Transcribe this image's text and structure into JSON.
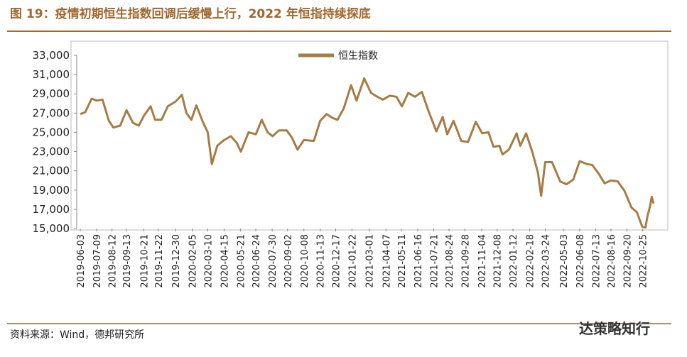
{
  "chart_data": {
    "type": "line",
    "title": "图 19：疫情初期恒生指数回调后缓慢上行，2022 年恒指持续探底",
    "source": "资料来源：Wind，德邦研究所",
    "watermark": "达策略知行",
    "x": [
      "2019-06-03",
      "2019-06-14",
      "2019-06-28",
      "2019-07-09",
      "2019-07-22",
      "2019-08-05",
      "2019-08-15",
      "2019-08-30",
      "2019-09-13",
      "2019-09-27",
      "2019-10-10",
      "2019-10-21",
      "2019-11-05",
      "2019-11-15",
      "2019-11-29",
      "2019-12-13",
      "2019-12-30",
      "2020-01-13",
      "2020-01-23",
      "2020-02-03",
      "2020-02-14",
      "2020-02-28",
      "2020-03-10",
      "2020-03-19",
      "2020-03-31",
      "2020-04-15",
      "2020-04-30",
      "2020-05-13",
      "2020-05-22",
      "2020-06-08",
      "2020-06-24",
      "2020-07-07",
      "2020-07-20",
      "2020-07-31",
      "2020-08-14",
      "2020-08-31",
      "2020-09-11",
      "2020-09-24",
      "2020-10-08",
      "2020-10-30",
      "2020-11-13",
      "2020-11-27",
      "2020-12-10",
      "2020-12-21",
      "2021-01-04",
      "2021-01-20",
      "2021-02-01",
      "2021-02-18",
      "2021-03-05",
      "2021-03-15",
      "2021-03-31",
      "2021-04-15",
      "2021-04-30",
      "2021-05-12",
      "2021-05-26",
      "2021-06-10",
      "2021-06-25",
      "2021-07-09",
      "2021-07-27",
      "2021-08-10",
      "2021-08-20",
      "2021-09-03",
      "2021-09-20",
      "2021-10-05",
      "2021-10-22",
      "2021-11-05",
      "2021-11-19",
      "2021-11-30",
      "2021-12-13",
      "2021-12-20",
      "2022-01-03",
      "2022-01-20",
      "2022-01-28",
      "2022-02-10",
      "2022-02-24",
      "2022-03-08",
      "2022-03-15",
      "2022-03-24",
      "2022-04-08",
      "2022-04-26",
      "2022-05-10",
      "2022-05-25",
      "2022-06-08",
      "2022-06-24",
      "2022-07-06",
      "2022-07-20",
      "2022-08-02",
      "2022-08-16",
      "2022-08-31",
      "2022-09-15",
      "2022-09-30",
      "2022-10-12",
      "2022-10-24",
      "2022-10-31",
      "2022-11-04",
      "2022-11-10",
      "2022-11-14",
      "2022-11-18"
    ],
    "series": [
      {
        "name": "恒生指数",
        "color": "#a67c45",
        "values": [
          26900,
          27100,
          28500,
          28300,
          28400,
          26200,
          25500,
          25700,
          27300,
          26000,
          25700,
          26700,
          27700,
          26300,
          26300,
          27700,
          28200,
          28900,
          27000,
          26300,
          27800,
          26100,
          25000,
          21700,
          23600,
          24200,
          24600,
          23900,
          23000,
          25000,
          24800,
          26300,
          25000,
          24600,
          25200,
          25200,
          24500,
          23200,
          24200,
          24100,
          26200,
          26900,
          26500,
          26300,
          27500,
          29900,
          28300,
          30600,
          29100,
          28800,
          28400,
          28800,
          28700,
          27700,
          29100,
          28700,
          29200,
          27300,
          25100,
          26600,
          24800,
          26200,
          24100,
          24000,
          26100,
          24900,
          25000,
          23500,
          23600,
          22700,
          23200,
          24900,
          23600,
          24900,
          22900,
          20800,
          18400,
          21900,
          21900,
          19900,
          19600,
          20100,
          22000,
          21700,
          21600,
          20700,
          19700,
          20000,
          19900,
          18900,
          17200,
          16700,
          15200,
          15100,
          16200,
          17300,
          18300,
          17600
        ]
      }
    ],
    "xlim": [
      "2019-06-03",
      "2022-11-18"
    ],
    "xticks": [
      "2019-06-03",
      "2019-07-09",
      "2019-08-12",
      "2019-09-13",
      "2019-10-21",
      "2019-11-22",
      "2019-12-30",
      "2020-02-05",
      "2020-03-10",
      "2020-04-15",
      "2020-05-21",
      "2020-06-24",
      "2020-07-30",
      "2020-09-02",
      "2020-10-08",
      "2020-11-13",
      "2020-12-17",
      "2021-01-22",
      "2021-03-01",
      "2021-04-07",
      "2021-05-11",
      "2021-06-16",
      "2021-07-21",
      "2021-08-24",
      "2021-09-28",
      "2021-11-04",
      "2021-12-08",
      "2022-01-12",
      "2022-02-18",
      "2022-03-24",
      "2022-05-03",
      "2022-06-08",
      "2022-07-13",
      "2022-08-16",
      "2022-09-20",
      "2022-10-25"
    ],
    "ylim": [
      15000,
      33000
    ],
    "yticks": [
      {
        "value": 15000,
        "label": "15,000"
      },
      {
        "value": 17000,
        "label": "17,000"
      },
      {
        "value": 19000,
        "label": "19,000"
      },
      {
        "value": 21000,
        "label": "21,000"
      },
      {
        "value": 23000,
        "label": "23,000"
      },
      {
        "value": 25000,
        "label": "25,000"
      },
      {
        "value": 27000,
        "label": "27,000"
      },
      {
        "value": 29000,
        "label": "29,000"
      },
      {
        "value": 31000,
        "label": "31,000"
      },
      {
        "value": 33000,
        "label": "33,000"
      }
    ],
    "legend": "top"
  }
}
